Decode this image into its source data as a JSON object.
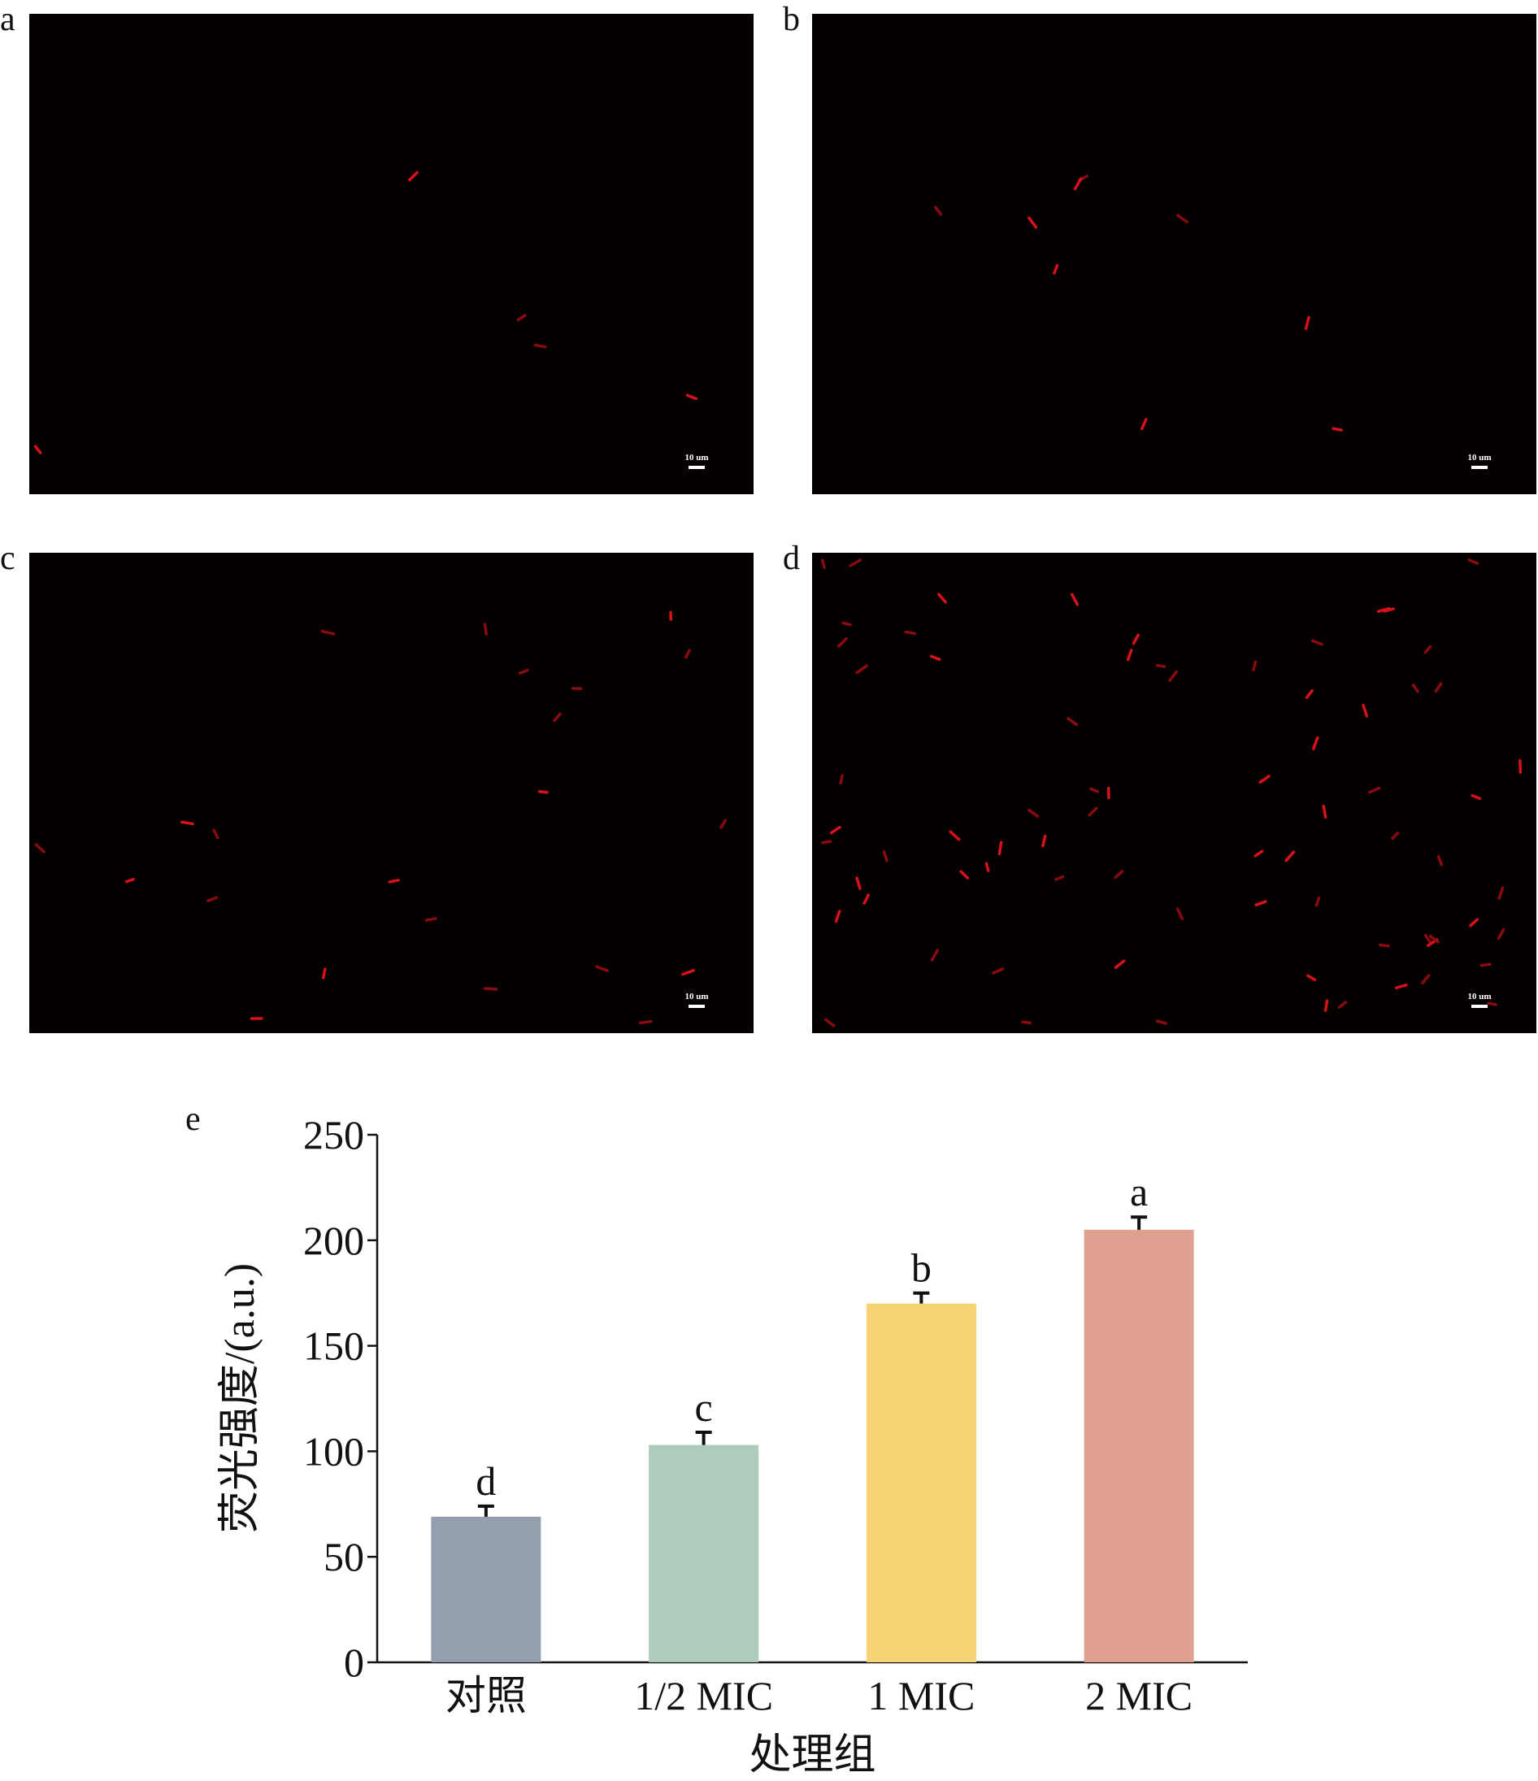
{
  "panels": [
    {
      "label": "a",
      "scale_bar": "10 um"
    },
    {
      "label": "b",
      "scale_bar": "10 um"
    },
    {
      "label": "c",
      "scale_bar": "10 um"
    },
    {
      "label": "d",
      "scale_bar": "10 um"
    }
  ],
  "chart_data": {
    "type": "bar",
    "panel_label": "e",
    "categories": [
      "对照",
      "1/2 MIC",
      "1 MIC",
      "2 MIC"
    ],
    "values": [
      69,
      103,
      170,
      205
    ],
    "errors": [
      5,
      6,
      5,
      6
    ],
    "annotations": [
      "d",
      "c",
      "b",
      "a"
    ],
    "colors": [
      "#939fae",
      "#aecbbb",
      "#f5d274",
      "#dfa090"
    ],
    "xlabel": "处理组",
    "ylabel": "荧光强度/(a.u.)",
    "ylim": [
      0,
      250
    ],
    "yticks": [
      0,
      50,
      100,
      150,
      200,
      250
    ]
  }
}
